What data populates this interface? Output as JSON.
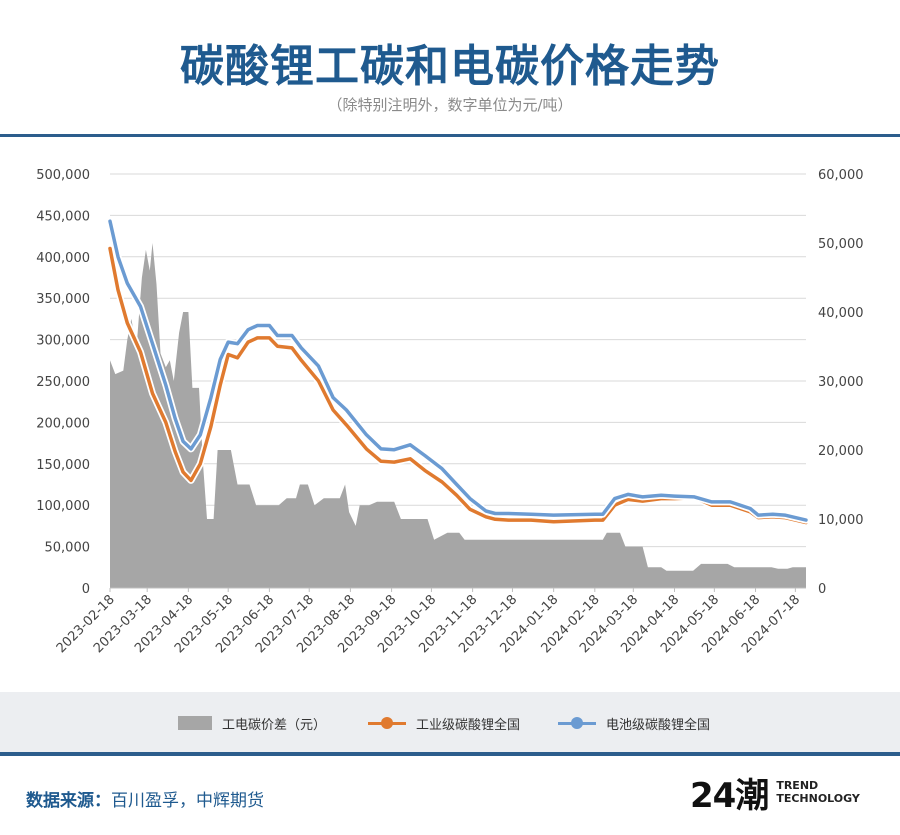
{
  "header": {
    "title": "碳酸锂工碳和电碳价格走势",
    "subtitle": "（除特别注明外，数字单位为元/吨）"
  },
  "chart_data": {
    "type": "line",
    "left_axis": {
      "ticks": [
        "0",
        "50,000",
        "100,000",
        "150,000",
        "200,000",
        "250,000",
        "300,000",
        "350,000",
        "400,000",
        "450,000",
        "500,000"
      ],
      "range": [
        0,
        500000
      ]
    },
    "right_axis": {
      "ticks": [
        "0",
        "10,000",
        "20,000",
        "30,000",
        "40,000",
        "50,000",
        "60,000"
      ],
      "range": [
        0,
        60000
      ]
    },
    "x_range": [
      "2023-02-18",
      "2024-07-26"
    ],
    "x_ticks": [
      "2023-02-18",
      "2023-03-18",
      "2023-04-18",
      "2023-05-18",
      "2023-06-18",
      "2023-07-18",
      "2023-08-18",
      "2023-09-18",
      "2023-10-18",
      "2023-11-18",
      "2023-12-18",
      "2024-01-18",
      "2024-02-18",
      "2024-03-18",
      "2024-04-18",
      "2024-05-18",
      "2024-06-18",
      "2024-07-18"
    ],
    "grid": true,
    "legend_position": "bottom",
    "series": [
      {
        "name": "工电碳价差（元）",
        "kind": "area",
        "axis": "right",
        "color": "#a6a6a6",
        "points": [
          [
            "2023-02-18",
            33000
          ],
          [
            "2023-02-22",
            31000
          ],
          [
            "2023-02-28",
            31500
          ],
          [
            "2023-03-03",
            36000
          ],
          [
            "2023-03-06",
            39000
          ],
          [
            "2023-03-10",
            35000
          ],
          [
            "2023-03-14",
            45000
          ],
          [
            "2023-03-17",
            49000
          ],
          [
            "2023-03-20",
            46000
          ],
          [
            "2023-03-22",
            50000
          ],
          [
            "2023-03-25",
            44000
          ],
          [
            "2023-03-28",
            34000
          ],
          [
            "2023-04-01",
            32000
          ],
          [
            "2023-04-04",
            33000
          ],
          [
            "2023-04-07",
            30000
          ],
          [
            "2023-04-11",
            37000
          ],
          [
            "2023-04-14",
            40000
          ],
          [
            "2023-04-18",
            40000
          ],
          [
            "2023-04-21",
            29000
          ],
          [
            "2023-04-26",
            29000
          ],
          [
            "2023-04-29",
            18000
          ],
          [
            "2023-05-02",
            10000
          ],
          [
            "2023-05-07",
            10000
          ],
          [
            "2023-05-10",
            20000
          ],
          [
            "2023-05-20",
            20000
          ],
          [
            "2023-05-25",
            15000
          ],
          [
            "2023-06-03",
            15000
          ],
          [
            "2023-06-08",
            12000
          ],
          [
            "2023-06-25",
            12000
          ],
          [
            "2023-07-01",
            13000
          ],
          [
            "2023-07-08",
            13000
          ],
          [
            "2023-07-11",
            15000
          ],
          [
            "2023-07-17",
            15000
          ],
          [
            "2023-07-22",
            12000
          ],
          [
            "2023-07-29",
            13000
          ],
          [
            "2023-08-04",
            13000
          ],
          [
            "2023-08-10",
            13000
          ],
          [
            "2023-08-14",
            15000
          ],
          [
            "2023-08-17",
            11000
          ],
          [
            "2023-08-22",
            9000
          ],
          [
            "2023-08-25",
            12000
          ],
          [
            "2023-09-01",
            12000
          ],
          [
            "2023-09-07",
            12500
          ],
          [
            "2023-09-20",
            12500
          ],
          [
            "2023-09-25",
            10000
          ],
          [
            "2023-10-15",
            10000
          ],
          [
            "2023-10-20",
            7000
          ],
          [
            "2023-10-30",
            8000
          ],
          [
            "2023-11-08",
            8000
          ],
          [
            "2023-11-12",
            7000
          ],
          [
            "2023-12-10",
            7000
          ],
          [
            "2024-01-10",
            7000
          ],
          [
            "2024-02-01",
            7000
          ],
          [
            "2024-02-24",
            7000
          ],
          [
            "2024-02-27",
            8000
          ],
          [
            "2024-03-08",
            8000
          ],
          [
            "2024-03-12",
            6000
          ],
          [
            "2024-03-25",
            6000
          ],
          [
            "2024-03-29",
            3000
          ],
          [
            "2024-04-08",
            3000
          ],
          [
            "2024-04-12",
            2500
          ],
          [
            "2024-05-02",
            2500
          ],
          [
            "2024-05-08",
            3500
          ],
          [
            "2024-05-28",
            3500
          ],
          [
            "2024-06-02",
            3000
          ],
          [
            "2024-06-30",
            3000
          ],
          [
            "2024-07-05",
            2800
          ],
          [
            "2024-07-12",
            2800
          ],
          [
            "2024-07-16",
            3000
          ],
          [
            "2024-07-26",
            3000
          ]
        ]
      },
      {
        "name": "工业级碳酸锂全国",
        "kind": "line",
        "axis": "left",
        "color": "#e07a2f",
        "points": [
          [
            "2023-02-18",
            410000
          ],
          [
            "2023-02-24",
            360000
          ],
          [
            "2023-03-03",
            320000
          ],
          [
            "2023-03-13",
            285000
          ],
          [
            "2023-03-22",
            235000
          ],
          [
            "2023-04-01",
            200000
          ],
          [
            "2023-04-08",
            165000
          ],
          [
            "2023-04-14",
            140000
          ],
          [
            "2023-04-20",
            130000
          ],
          [
            "2023-04-27",
            150000
          ],
          [
            "2023-05-05",
            195000
          ],
          [
            "2023-05-12",
            245000
          ],
          [
            "2023-05-18",
            282000
          ],
          [
            "2023-05-25",
            278000
          ],
          [
            "2023-06-02",
            297000
          ],
          [
            "2023-06-09",
            302000
          ],
          [
            "2023-06-18",
            302000
          ],
          [
            "2023-06-24",
            292000
          ],
          [
            "2023-07-05",
            290000
          ],
          [
            "2023-07-12",
            275000
          ],
          [
            "2023-07-25",
            250000
          ],
          [
            "2023-08-05",
            215000
          ],
          [
            "2023-08-15",
            197000
          ],
          [
            "2023-08-30",
            168000
          ],
          [
            "2023-09-10",
            153000
          ],
          [
            "2023-09-20",
            152000
          ],
          [
            "2023-10-02",
            156000
          ],
          [
            "2023-10-13",
            142000
          ],
          [
            "2023-10-26",
            128000
          ],
          [
            "2023-11-06",
            112000
          ],
          [
            "2023-11-16",
            95000
          ],
          [
            "2023-11-28",
            86000
          ],
          [
            "2023-12-05",
            83000
          ],
          [
            "2023-12-15",
            82000
          ],
          [
            "2024-01-01",
            82000
          ],
          [
            "2024-01-18",
            80000
          ],
          [
            "2024-02-18",
            82000
          ],
          [
            "2024-02-24",
            82000
          ],
          [
            "2024-03-04",
            100000
          ],
          [
            "2024-03-14",
            107000
          ],
          [
            "2024-03-25",
            105000
          ],
          [
            "2024-04-08",
            108000
          ],
          [
            "2024-04-18",
            108000
          ],
          [
            "2024-05-03",
            109000
          ],
          [
            "2024-05-16",
            100000
          ],
          [
            "2024-05-30",
            100000
          ],
          [
            "2024-06-14",
            92000
          ],
          [
            "2024-06-20",
            85000
          ],
          [
            "2024-07-01",
            86000
          ],
          [
            "2024-07-10",
            85000
          ],
          [
            "2024-07-26",
            79000
          ]
        ]
      },
      {
        "name": "电池级碳酸锂全国",
        "kind": "line",
        "axis": "left",
        "color": "#6b9bd2",
        "points": [
          [
            "2023-02-18",
            443000
          ],
          [
            "2023-02-24",
            400000
          ],
          [
            "2023-03-03",
            368000
          ],
          [
            "2023-03-13",
            340000
          ],
          [
            "2023-03-22",
            295000
          ],
          [
            "2023-04-01",
            245000
          ],
          [
            "2023-04-08",
            205000
          ],
          [
            "2023-04-14",
            177000
          ],
          [
            "2023-04-20",
            168000
          ],
          [
            "2023-04-27",
            185000
          ],
          [
            "2023-05-05",
            230000
          ],
          [
            "2023-05-12",
            276000
          ],
          [
            "2023-05-18",
            297000
          ],
          [
            "2023-05-25",
            295000
          ],
          [
            "2023-06-02",
            312000
          ],
          [
            "2023-06-09",
            317000
          ],
          [
            "2023-06-18",
            317000
          ],
          [
            "2023-06-24",
            305000
          ],
          [
            "2023-07-05",
            305000
          ],
          [
            "2023-07-12",
            290000
          ],
          [
            "2023-07-25",
            268000
          ],
          [
            "2023-08-05",
            230000
          ],
          [
            "2023-08-15",
            215000
          ],
          [
            "2023-08-30",
            185000
          ],
          [
            "2023-09-10",
            168000
          ],
          [
            "2023-09-20",
            167000
          ],
          [
            "2023-10-02",
            173000
          ],
          [
            "2023-10-13",
            160000
          ],
          [
            "2023-10-26",
            144000
          ],
          [
            "2023-11-06",
            125000
          ],
          [
            "2023-11-16",
            108000
          ],
          [
            "2023-11-28",
            93000
          ],
          [
            "2023-12-05",
            90000
          ],
          [
            "2023-12-15",
            90000
          ],
          [
            "2024-01-01",
            89000
          ],
          [
            "2024-01-18",
            88000
          ],
          [
            "2024-02-18",
            89000
          ],
          [
            "2024-02-24",
            89000
          ],
          [
            "2024-03-04",
            108000
          ],
          [
            "2024-03-14",
            113000
          ],
          [
            "2024-03-25",
            110000
          ],
          [
            "2024-04-08",
            112000
          ],
          [
            "2024-04-18",
            111000
          ],
          [
            "2024-05-03",
            110000
          ],
          [
            "2024-05-16",
            104000
          ],
          [
            "2024-05-30",
            104000
          ],
          [
            "2024-06-14",
            96000
          ],
          [
            "2024-06-20",
            88000
          ],
          [
            "2024-07-01",
            89000
          ],
          [
            "2024-07-10",
            88000
          ],
          [
            "2024-07-26",
            82000
          ]
        ]
      }
    ]
  },
  "footer": {
    "source_label": "数据来源：",
    "source_text": "百川盈孚，中辉期货",
    "brand_logo": "24潮",
    "brand_line1": "TREND",
    "brand_line2": "TECHNOLOGY"
  }
}
